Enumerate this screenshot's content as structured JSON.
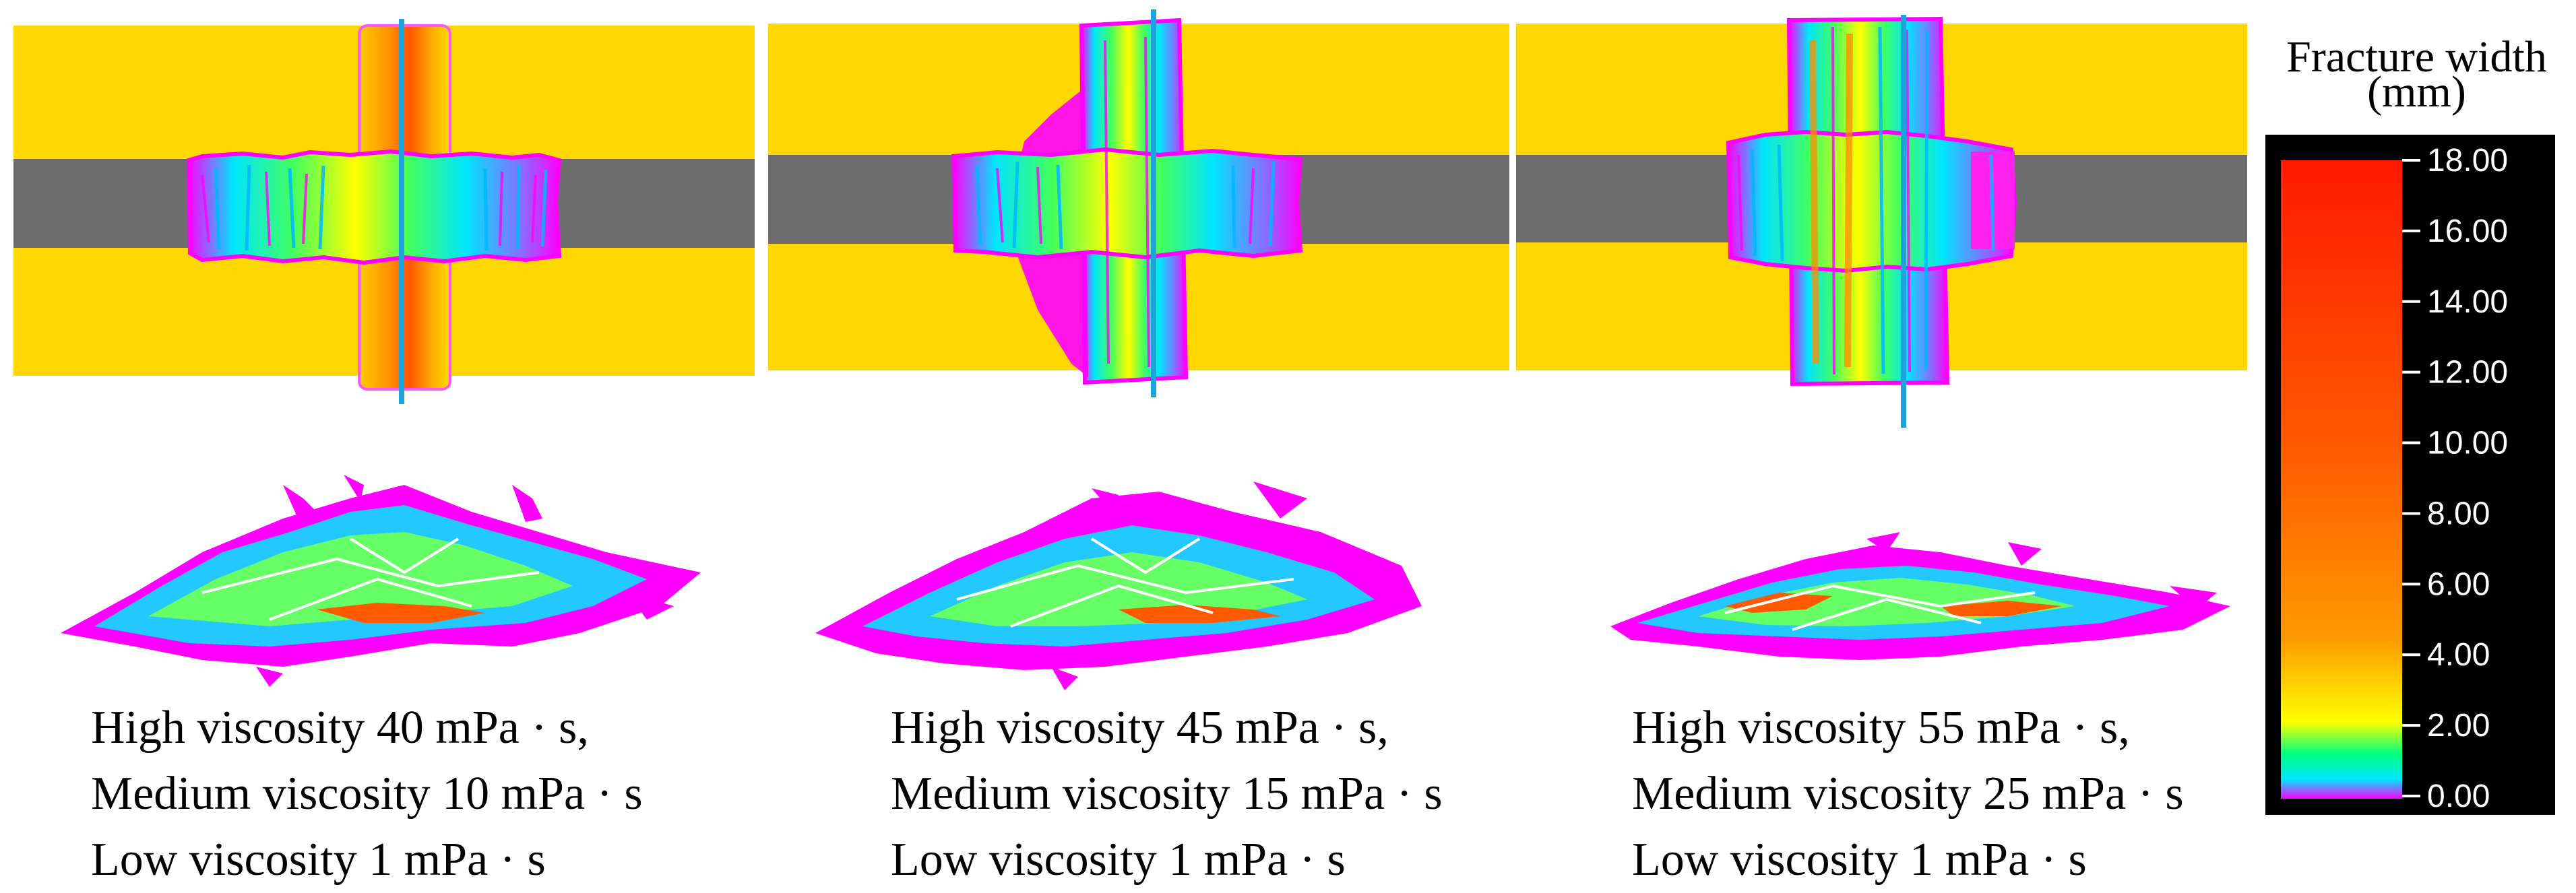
{
  "panels": [
    {
      "caption": {
        "high": "High viscosity 40 mPa · s,",
        "medium": "Medium viscosity 10 mPa · s",
        "low": "Low viscosity 1 mPa · s"
      }
    },
    {
      "caption": {
        "high": "High viscosity 45 mPa · s,",
        "medium": "Medium viscosity 15 mPa · s",
        "low": "Low viscosity 1 mPa · s"
      }
    },
    {
      "caption": {
        "high": "High viscosity 55 mPa · s,",
        "medium": "Medium viscosity 25 mPa · s",
        "low": "Low viscosity 1 mPa · s"
      }
    }
  ],
  "legend": {
    "title_line1": "Fracture width",
    "title_line2": "(mm)",
    "ticks": [
      "18.00",
      "16.00",
      "14.00",
      "12.00",
      "10.00",
      "8.00",
      "6.00",
      "4.00",
      "2.00",
      "0.00"
    ],
    "min": 0,
    "max": 18
  },
  "colors": {
    "formation_layer": "#ffd700",
    "target_layer": "#6d6d6d",
    "wellbore": "#1fa3dc",
    "legend_background": "#000000",
    "magenta": "#ff00ff",
    "cyan": "#00ffff",
    "red": "#ff1a00"
  }
}
